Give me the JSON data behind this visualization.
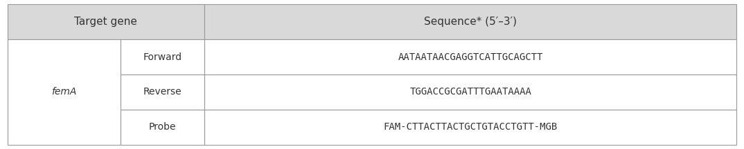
{
  "header_col1": "Target gene",
  "header_col2": "Sequence* (5′–3′)",
  "col1_label": "femA",
  "rows": [
    {
      "type": "Forward",
      "sequence": "AATAATAACGAGGTCATTGCAGCTT"
    },
    {
      "type": "Reverse",
      "sequence": "TGGACCGCGATTTGAATAAAA"
    },
    {
      "type": "Probe",
      "sequence": "FAM-CTTACTTACTGCTGTACCTGTT-MGB"
    }
  ],
  "header_bg": "#d9d9d9",
  "row_bg": "#ffffff",
  "border_color": "#999999",
  "text_color": "#333333",
  "header_fontsize": 11,
  "body_fontsize": 10,
  "col1_italic": true,
  "fig_bg": "#ffffff",
  "col_split1": 0.155,
  "col_split2": 0.27
}
